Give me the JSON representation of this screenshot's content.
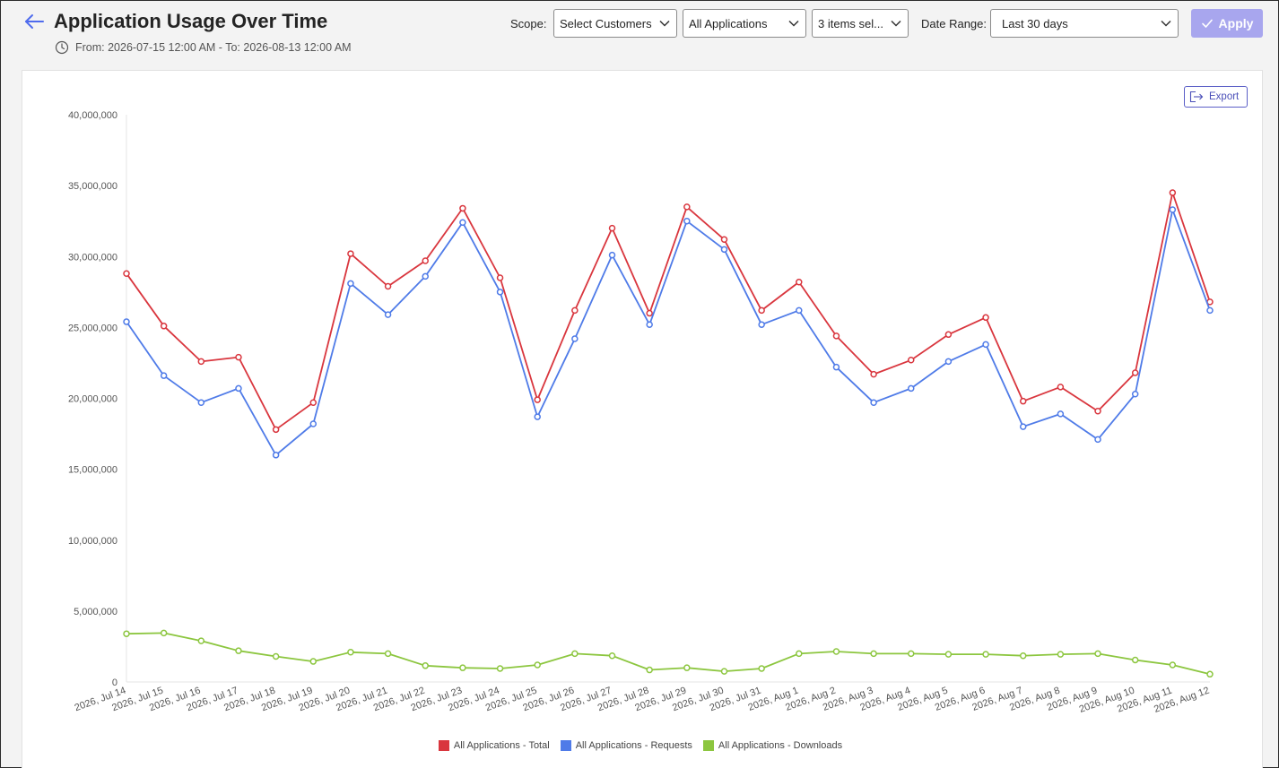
{
  "header": {
    "title": "Application Usage Over Time",
    "date_range_text": "From: 2026-07-15 12:00 AM - To: 2026-08-13 12:00 AM"
  },
  "filters": {
    "scope_label": "Scope:",
    "customers_value": "Select Customers",
    "applications_value": "All Applications",
    "items_value": "3 items sel...",
    "date_range_label": "Date Range:",
    "date_range_value": "Last 30 days",
    "apply_label": "Apply"
  },
  "toolbar": {
    "export_label": "Export"
  },
  "icons": {
    "back": "arrow-left-icon",
    "clock": "clock-icon",
    "chevron": "chevron-down-icon",
    "check": "checkmark-icon",
    "export": "export-icon"
  },
  "chart_data": {
    "type": "line",
    "title": "",
    "xlabel": "",
    "ylabel": "",
    "ylim": [
      0,
      40000000
    ],
    "y_ticks": [
      "0",
      "5,000,000",
      "10,000,000",
      "15,000,000",
      "20,000,000",
      "25,000,000",
      "30,000,000",
      "35,000,000",
      "40,000,000"
    ],
    "grid": false,
    "legend_position": "bottom",
    "categories": [
      "2026, Jul 14",
      "2026, Jul 15",
      "2026, Jul 16",
      "2026, Jul 17",
      "2026, Jul 18",
      "2026, Jul 19",
      "2026, Jul 20",
      "2026, Jul 21",
      "2026, Jul 22",
      "2026, Jul 23",
      "2026, Jul 24",
      "2026, Jul 25",
      "2026, Jul 26",
      "2026, Jul 27",
      "2026, Jul 28",
      "2026, Jul 29",
      "2026, Jul 30",
      "2026, Jul 31",
      "2026, Aug 1",
      "2026, Aug 2",
      "2026, Aug 3",
      "2026, Aug 4",
      "2026, Aug 5",
      "2026, Aug 6",
      "2026, Aug 7",
      "2026, Aug 8",
      "2026, Aug 9",
      "2026, Aug 10",
      "2026, Aug 11",
      "2026, Aug 12"
    ],
    "series": [
      {
        "name": "All Applications - Total",
        "color": "#d9363e",
        "values": [
          28800000,
          25100000,
          22600000,
          22900000,
          17800000,
          19700000,
          30200000,
          27900000,
          29700000,
          33400000,
          28500000,
          19900000,
          26200000,
          32000000,
          26000000,
          33500000,
          31200000,
          26200000,
          28200000,
          24400000,
          21700000,
          22700000,
          24500000,
          25700000,
          19800000,
          20800000,
          19100000,
          21800000,
          34500000,
          26800000
        ]
      },
      {
        "name": "All Applications - Requests",
        "color": "#4f7be8",
        "values": [
          25400000,
          21600000,
          19700000,
          20700000,
          16000000,
          18200000,
          28100000,
          25900000,
          28600000,
          32400000,
          27500000,
          18700000,
          24200000,
          30100000,
          25200000,
          32500000,
          30500000,
          25200000,
          26200000,
          22200000,
          19700000,
          20700000,
          22600000,
          23800000,
          18000000,
          18900000,
          17100000,
          20300000,
          33300000,
          26200000
        ]
      },
      {
        "name": "All Applications - Downloads",
        "color": "#8cc63f",
        "values": [
          3400000,
          3450000,
          2900000,
          2200000,
          1800000,
          1450000,
          2100000,
          2000000,
          1150000,
          1000000,
          950000,
          1200000,
          2000000,
          1850000,
          850000,
          1000000,
          750000,
          950000,
          2000000,
          2150000,
          2000000,
          2000000,
          1950000,
          1950000,
          1850000,
          1950000,
          2000000,
          1550000,
          1200000,
          550000
        ]
      }
    ]
  }
}
